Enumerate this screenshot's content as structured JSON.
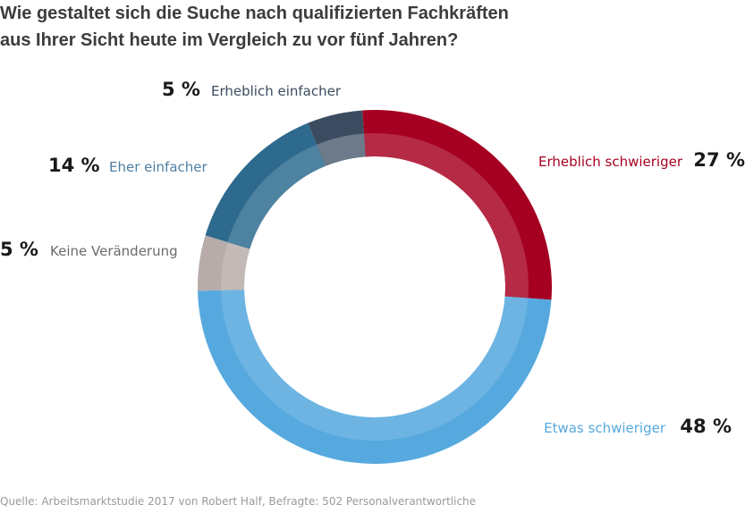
{
  "title": {
    "line1": "Wie gestaltet sich die Suche nach qualifizierten Fachkräften",
    "line2": "aus Ihrer Sicht heute im Vergleich zu vor fünf Jahren?"
  },
  "source": "Quelle: Arbeitsmarktstudie 2017 von Robert Half, Befragte: 502 Personalverantwortliche",
  "chart_data": {
    "type": "pie",
    "donut": true,
    "unit": "%",
    "slices": [
      {
        "label": "Erheblich schwieriger",
        "value": 27,
        "pct_label": "27 %",
        "color": "#a50021",
        "inner_color": "#b52a45",
        "text_color": "#a50021"
      },
      {
        "label": "Etwas schwieriger",
        "value": 48,
        "pct_label": "48 %",
        "color": "#56a9de",
        "inner_color": "#6db4e3",
        "text_color": "#56a9de"
      },
      {
        "label": "Keine Veränderung",
        "value": 5,
        "pct_label": "5 %",
        "color": "#b7aca9",
        "inner_color": "#c3b9b6",
        "text_color": "#6b6b6b"
      },
      {
        "label": "Eher einfacher",
        "value": 14,
        "pct_label": "14 %",
        "color": "#2e6a8e",
        "inner_color": "#4d82a1",
        "text_color": "#4f7fa3"
      },
      {
        "label": "Erheblich einfacher",
        "value": 5,
        "pct_label": "5 %",
        "color": "#3c4c60",
        "inner_color": "#6c7a89",
        "text_color": "#3c4c60"
      }
    ]
  }
}
